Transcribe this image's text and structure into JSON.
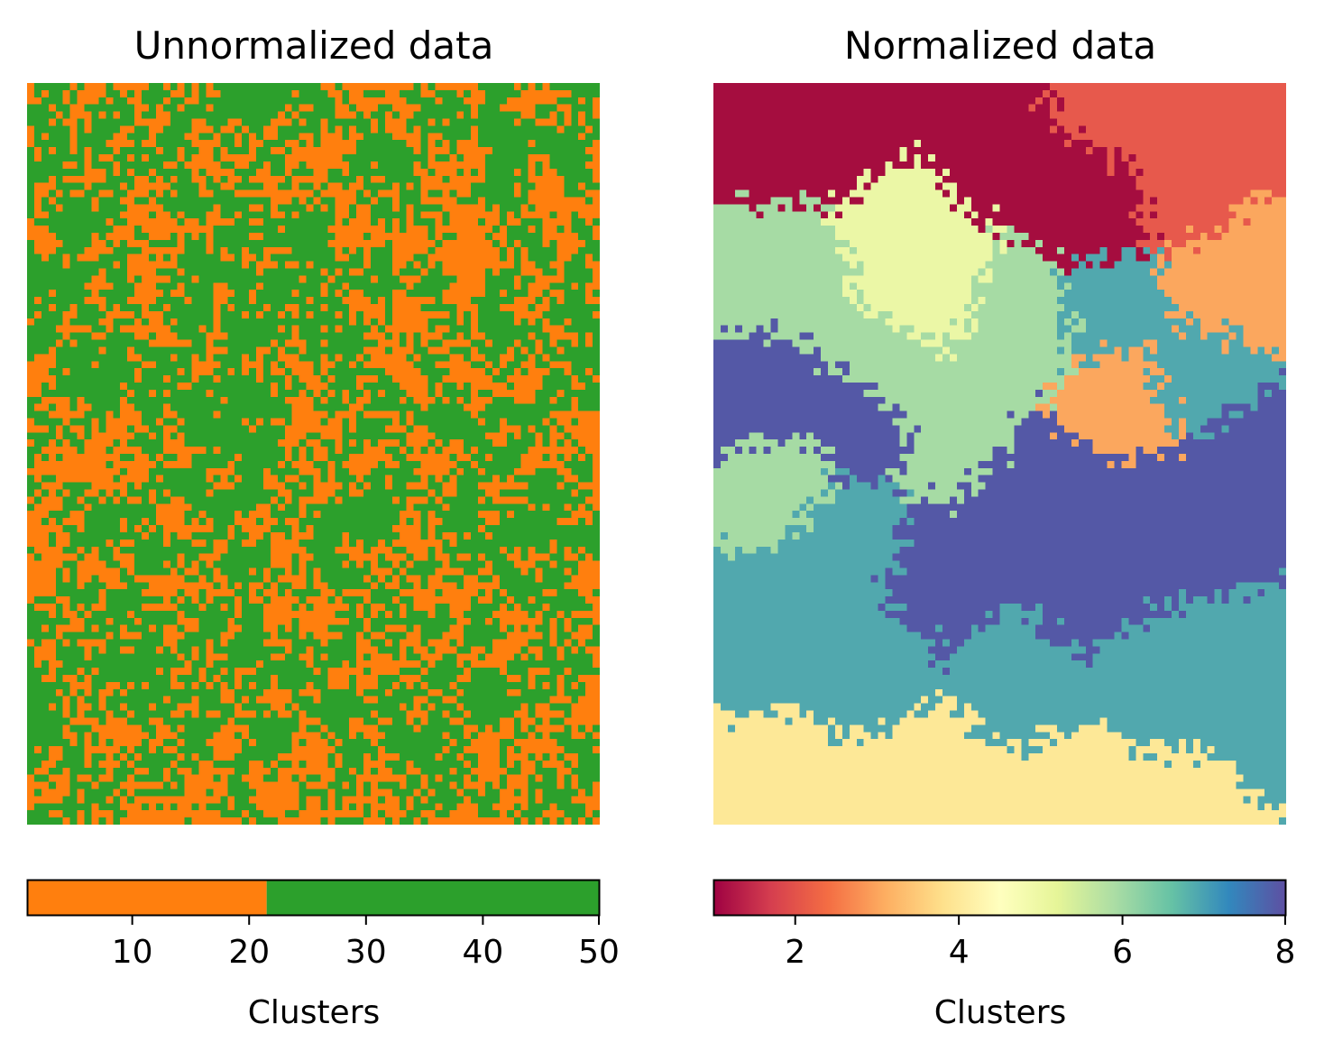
{
  "chart_data": [
    {
      "type": "heatmap",
      "title": "Unnormalized data",
      "xlabel": "",
      "ylabel": "",
      "colorbar": {
        "label": "Clusters",
        "range": [
          1,
          50
        ],
        "ticks": [
          10,
          20,
          30,
          40,
          50
        ],
        "segments": [
          {
            "from": 1,
            "to": 21.5,
            "color": "#ff7f0e"
          },
          {
            "from": 21.5,
            "to": 50,
            "color": "#2ca02c"
          }
        ]
      },
      "colors": {
        "low": "#ff7f0e",
        "high": "#2ca02c"
      }
    },
    {
      "type": "heatmap",
      "title": "Normalized data",
      "xlabel": "",
      "ylabel": "",
      "colorbar": {
        "label": "Clusters",
        "range": [
          1,
          8
        ],
        "ticks": [
          2,
          4,
          6,
          8
        ],
        "colormap": "Spectral",
        "stops": [
          "#9e0142",
          "#d53e4f",
          "#f46d43",
          "#fdae61",
          "#fee08b",
          "#ffffbf",
          "#e6f598",
          "#abdda4",
          "#66c2a5",
          "#3288bd",
          "#5e4fa2"
        ]
      },
      "cluster_colors": {
        "1": "#a50d3f",
        "2": "#e7594c",
        "3": "#fba75e",
        "4": "#fde897",
        "5": "#ebf7a6",
        "6": "#a6dba4",
        "7": "#51a8ae",
        "8": "#5458a6"
      }
    }
  ]
}
